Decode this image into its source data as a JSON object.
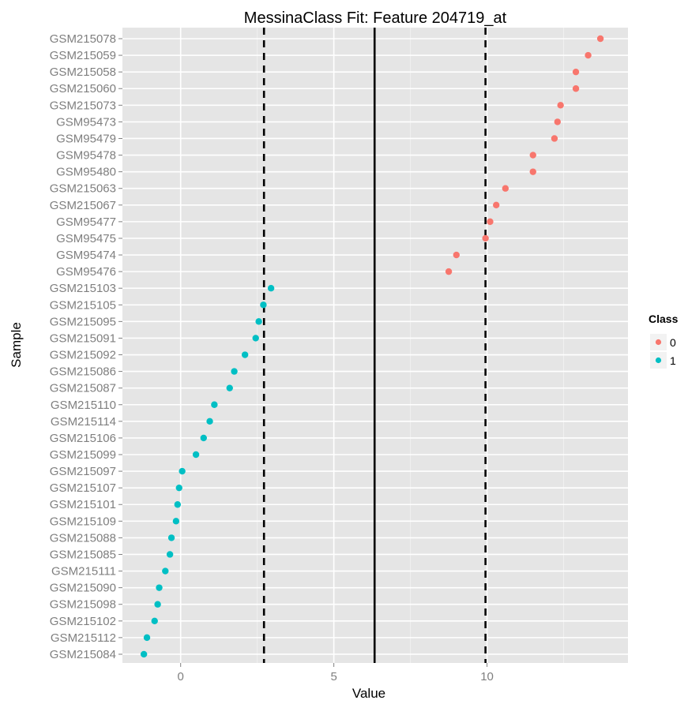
{
  "chart_data": {
    "type": "scatter",
    "title": "MessinaClass Fit: Feature 204719_at",
    "xlabel": "Value",
    "ylabel": "Sample",
    "xlim": [
      -1.9,
      14.6
    ],
    "x_ticks": [
      0,
      5,
      10
    ],
    "grid": true,
    "legend": {
      "title": "Class",
      "position": "right",
      "entries": [
        {
          "label": "0",
          "color": "#F8766D"
        },
        {
          "label": "1",
          "color": "#00BFC4"
        }
      ]
    },
    "vlines": [
      {
        "x": 2.72,
        "style": "dashed",
        "color": "#000000"
      },
      {
        "x": 6.33,
        "style": "solid",
        "color": "#000000"
      },
      {
        "x": 9.95,
        "style": "dashed",
        "color": "#000000"
      }
    ],
    "points": [
      {
        "sample": "GSM215078",
        "value": 13.7,
        "class": "0"
      },
      {
        "sample": "GSM215059",
        "value": 13.3,
        "class": "0"
      },
      {
        "sample": "GSM215058",
        "value": 12.9,
        "class": "0"
      },
      {
        "sample": "GSM215060",
        "value": 12.9,
        "class": "0"
      },
      {
        "sample": "GSM215073",
        "value": 12.4,
        "class": "0"
      },
      {
        "sample": "GSM95473",
        "value": 12.3,
        "class": "0"
      },
      {
        "sample": "GSM95479",
        "value": 12.2,
        "class": "0"
      },
      {
        "sample": "GSM95478",
        "value": 11.5,
        "class": "0"
      },
      {
        "sample": "GSM95480",
        "value": 11.5,
        "class": "0"
      },
      {
        "sample": "GSM215063",
        "value": 10.6,
        "class": "0"
      },
      {
        "sample": "GSM215067",
        "value": 10.3,
        "class": "0"
      },
      {
        "sample": "GSM95477",
        "value": 10.1,
        "class": "0"
      },
      {
        "sample": "GSM95475",
        "value": 9.95,
        "class": "0"
      },
      {
        "sample": "GSM95474",
        "value": 9.0,
        "class": "0"
      },
      {
        "sample": "GSM95476",
        "value": 8.75,
        "class": "0"
      },
      {
        "sample": "GSM215103",
        "value": 2.95,
        "class": "1"
      },
      {
        "sample": "GSM215105",
        "value": 2.7,
        "class": "1"
      },
      {
        "sample": "GSM215095",
        "value": 2.55,
        "class": "1"
      },
      {
        "sample": "GSM215091",
        "value": 2.45,
        "class": "1"
      },
      {
        "sample": "GSM215092",
        "value": 2.1,
        "class": "1"
      },
      {
        "sample": "GSM215086",
        "value": 1.75,
        "class": "1"
      },
      {
        "sample": "GSM215087",
        "value": 1.6,
        "class": "1"
      },
      {
        "sample": "GSM215110",
        "value": 1.1,
        "class": "1"
      },
      {
        "sample": "GSM215114",
        "value": 0.95,
        "class": "1"
      },
      {
        "sample": "GSM215106",
        "value": 0.75,
        "class": "1"
      },
      {
        "sample": "GSM215099",
        "value": 0.5,
        "class": "1"
      },
      {
        "sample": "GSM215097",
        "value": 0.05,
        "class": "1"
      },
      {
        "sample": "GSM215107",
        "value": -0.05,
        "class": "1"
      },
      {
        "sample": "GSM215101",
        "value": -0.1,
        "class": "1"
      },
      {
        "sample": "GSM215109",
        "value": -0.15,
        "class": "1"
      },
      {
        "sample": "GSM215088",
        "value": -0.3,
        "class": "1"
      },
      {
        "sample": "GSM215085",
        "value": -0.35,
        "class": "1"
      },
      {
        "sample": "GSM215111",
        "value": -0.5,
        "class": "1"
      },
      {
        "sample": "GSM215090",
        "value": -0.7,
        "class": "1"
      },
      {
        "sample": "GSM215098",
        "value": -0.75,
        "class": "1"
      },
      {
        "sample": "GSM215102",
        "value": -0.85,
        "class": "1"
      },
      {
        "sample": "GSM215112",
        "value": -1.1,
        "class": "1"
      },
      {
        "sample": "GSM215084",
        "value": -1.2,
        "class": "1"
      }
    ]
  }
}
